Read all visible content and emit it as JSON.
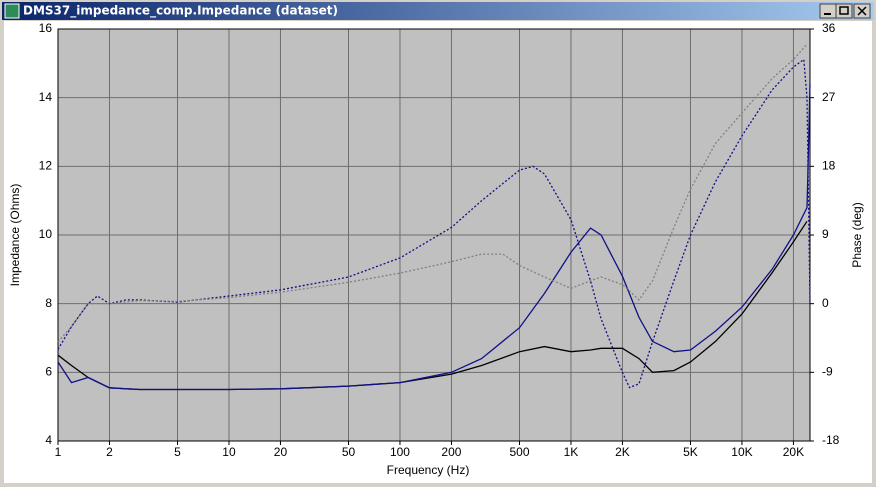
{
  "window_title": "DMS37_impedance_comp.Impedance (dataset)",
  "chart_data": {
    "type": "line",
    "xlabel": "Frequency (Hz)",
    "ylabel": "Impedance (Ohms)",
    "y2label": "Phase (deg)",
    "xscale": "log",
    "grid": true,
    "xlim": [
      1,
      25000
    ],
    "ylim": [
      4,
      16
    ],
    "y2lim": [
      -18,
      36
    ],
    "xticks": [
      1,
      2,
      5,
      10,
      20,
      50,
      100,
      200,
      500,
      {
        "value": 1000,
        "label": "1K"
      },
      {
        "value": 2000,
        "label": "2K"
      },
      {
        "value": 5000,
        "label": "5K"
      },
      {
        "value": 10000,
        "label": "10K"
      },
      {
        "value": 20000,
        "label": "20K"
      }
    ],
    "yticks": [
      4,
      6,
      8,
      10,
      12,
      14,
      16
    ],
    "y2ticks": [
      -18,
      -9,
      0,
      9,
      18,
      27,
      36
    ],
    "series": [
      {
        "color": "#000000",
        "dash": "solid",
        "axis": "y",
        "x": [
          1,
          1.2,
          1.5,
          2,
          3,
          5,
          10,
          20,
          50,
          100,
          200,
          300,
          500,
          700,
          1000,
          1300,
          1500,
          2000,
          2500,
          3000,
          4000,
          5000,
          7000,
          10000,
          15000,
          20000,
          24000
        ],
        "values": [
          6.5,
          6.2,
          5.85,
          5.55,
          5.5,
          5.5,
          5.5,
          5.52,
          5.6,
          5.7,
          5.95,
          6.2,
          6.6,
          6.75,
          6.6,
          6.65,
          6.7,
          6.7,
          6.4,
          6.0,
          6.05,
          6.3,
          6.9,
          7.7,
          8.9,
          9.8,
          10.4
        ]
      },
      {
        "color": "#10108a",
        "dash": "solid",
        "axis": "y",
        "x": [
          1,
          1.2,
          1.5,
          2,
          3,
          5,
          10,
          20,
          50,
          100,
          200,
          300,
          500,
          700,
          1000,
          1300,
          1500,
          2000,
          2500,
          3000,
          4000,
          5000,
          7000,
          10000,
          15000,
          20000,
          24000,
          24500,
          25000
        ],
        "values": [
          6.3,
          5.7,
          5.85,
          5.55,
          5.5,
          5.5,
          5.5,
          5.52,
          5.6,
          5.7,
          6.0,
          6.4,
          7.3,
          8.3,
          9.5,
          10.2,
          10.0,
          8.8,
          7.6,
          6.9,
          6.6,
          6.65,
          7.2,
          7.9,
          9.0,
          10.0,
          10.8,
          12.5,
          14.4
        ]
      },
      {
        "color": "#10108a",
        "dash": "dotted",
        "axis": "y2",
        "x": [
          1,
          1.2,
          1.5,
          1.7,
          2,
          2.5,
          3,
          5,
          10,
          20,
          50,
          100,
          200,
          300,
          500,
          600,
          700,
          1000,
          1300,
          1500,
          2000,
          2200,
          2500,
          3000,
          4000,
          5000,
          7000,
          10000,
          15000,
          20000,
          23000,
          24000,
          25000
        ],
        "values": [
          -6,
          -3,
          0,
          1,
          0,
          0.5,
          0.5,
          0.2,
          1,
          1.8,
          3.5,
          6,
          10,
          13.5,
          17.5,
          18,
          17,
          11,
          3,
          -2,
          -9,
          -11,
          -10.5,
          -5,
          3,
          9,
          16,
          22,
          28,
          31,
          32,
          27,
          0
        ]
      },
      {
        "color": "#808080",
        "dash": "dotted",
        "axis": "y2",
        "x": [
          1,
          1.2,
          1.5,
          2,
          3,
          5,
          10,
          20,
          50,
          100,
          200,
          300,
          400,
          500,
          700,
          1000,
          1300,
          1500,
          2000,
          2500,
          3000,
          4000,
          5000,
          7000,
          10000,
          15000,
          20000,
          24000
        ],
        "values": [
          -5,
          -3,
          0,
          0,
          0.4,
          0.3,
          0.8,
          1.5,
          2.8,
          4,
          5.5,
          6.5,
          6.5,
          5,
          3.5,
          2,
          3,
          3.5,
          2.5,
          0.5,
          3,
          10,
          15,
          21,
          25,
          29.5,
          32,
          34
        ]
      }
    ]
  }
}
